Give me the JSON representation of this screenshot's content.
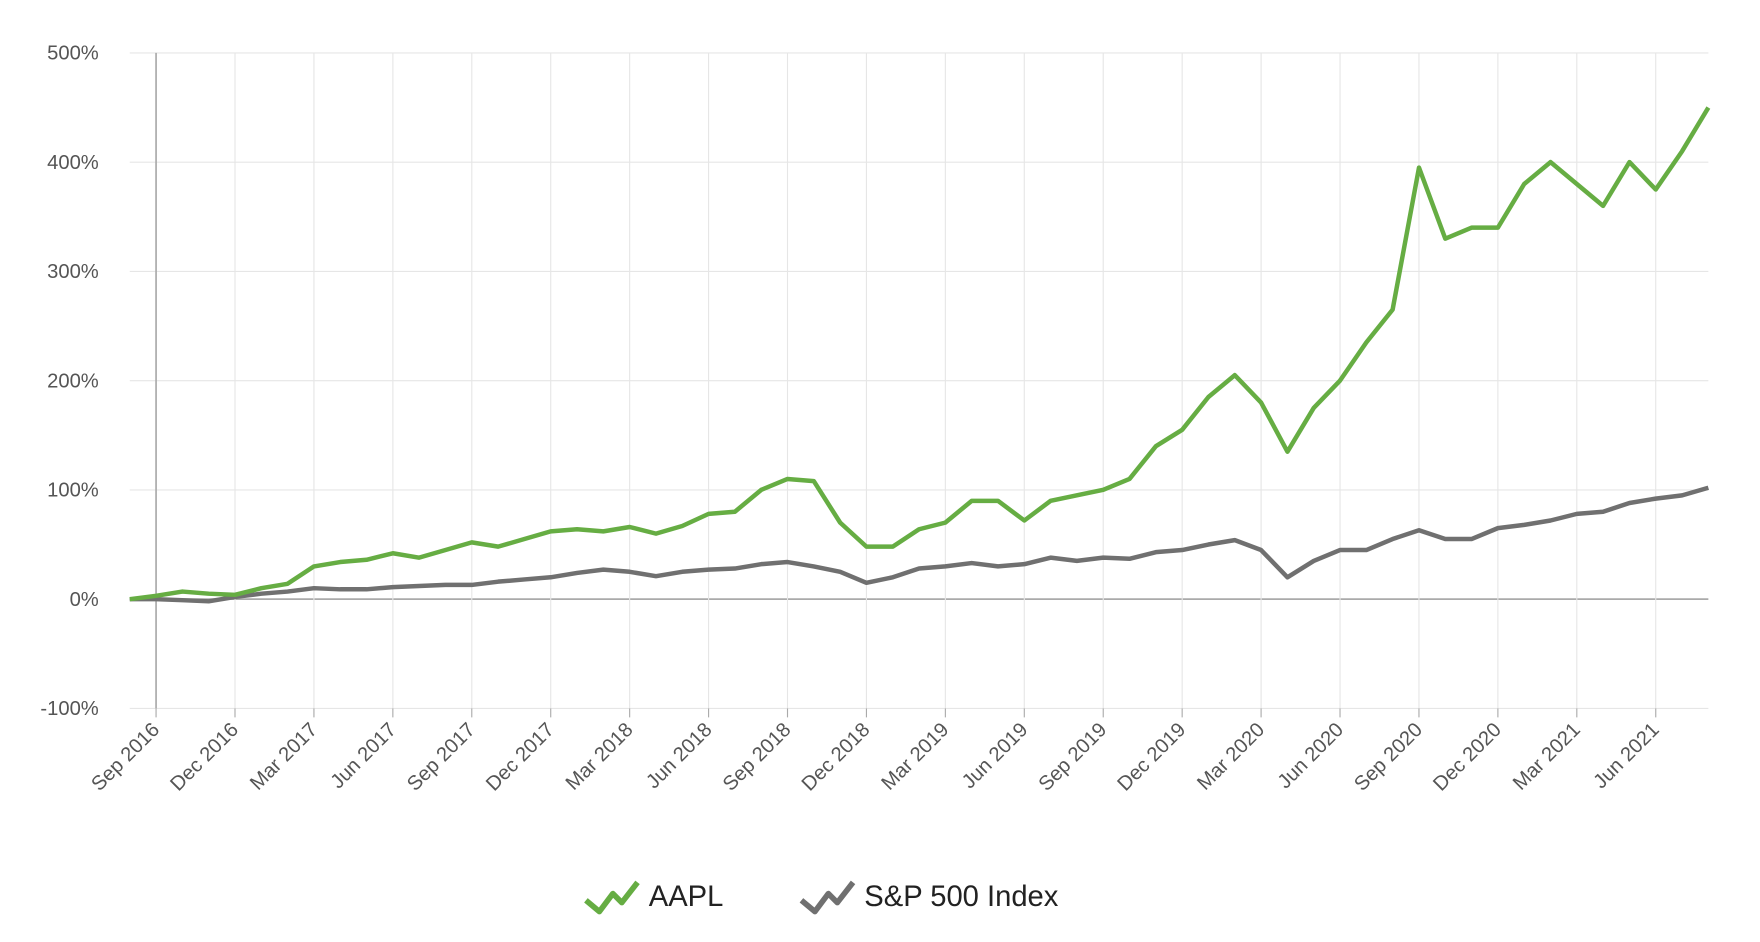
{
  "chart_data": {
    "type": "line",
    "x": [
      "2016-08",
      "2016-09",
      "2016-10",
      "2016-11",
      "2016-12",
      "2017-01",
      "2017-02",
      "2017-03",
      "2017-04",
      "2017-05",
      "2017-06",
      "2017-07",
      "2017-08",
      "2017-09",
      "2017-10",
      "2017-11",
      "2017-12",
      "2018-01",
      "2018-02",
      "2018-03",
      "2018-04",
      "2018-05",
      "2018-06",
      "2018-07",
      "2018-08",
      "2018-09",
      "2018-10",
      "2018-11",
      "2018-12",
      "2019-01",
      "2019-02",
      "2019-03",
      "2019-04",
      "2019-05",
      "2019-06",
      "2019-07",
      "2019-08",
      "2019-09",
      "2019-10",
      "2019-11",
      "2019-12",
      "2020-01",
      "2020-02",
      "2020-03",
      "2020-04",
      "2020-05",
      "2020-06",
      "2020-07",
      "2020-08",
      "2020-09",
      "2020-10",
      "2020-11",
      "2020-12",
      "2021-01",
      "2021-02",
      "2021-03",
      "2021-04",
      "2021-05",
      "2021-06",
      "2021-07",
      "2021-08"
    ],
    "series": [
      {
        "name": "AAPL",
        "color": "#66ad43",
        "values": [
          0,
          3,
          7,
          5,
          4,
          10,
          14,
          30,
          34,
          36,
          42,
          38,
          45,
          52,
          48,
          55,
          62,
          64,
          62,
          66,
          60,
          67,
          78,
          80,
          100,
          110,
          108,
          70,
          48,
          48,
          64,
          70,
          90,
          90,
          72,
          90,
          95,
          100,
          110,
          140,
          155,
          185,
          205,
          180,
          135,
          175,
          200,
          235,
          265,
          395,
          330,
          340,
          340,
          380,
          400,
          380,
          360,
          400,
          375,
          410,
          450
        ]
      },
      {
        "name": "S&P 500 Index",
        "color": "#707070",
        "values": [
          0,
          0,
          -1,
          -2,
          2,
          5,
          7,
          10,
          9,
          9,
          11,
          12,
          13,
          13,
          16,
          18,
          20,
          24,
          27,
          25,
          21,
          25,
          27,
          28,
          32,
          34,
          30,
          25,
          15,
          20,
          28,
          30,
          33,
          30,
          32,
          38,
          35,
          38,
          37,
          43,
          45,
          50,
          54,
          45,
          20,
          35,
          45,
          45,
          55,
          63,
          55,
          55,
          65,
          68,
          72,
          78,
          80,
          88,
          92,
          95,
          102
        ]
      }
    ],
    "xlim": [
      "2016-08",
      "2021-08"
    ],
    "xticks": [
      {
        "value": "2016-09",
        "label": "Sep 2016"
      },
      {
        "value": "2016-12",
        "label": "Dec 2016"
      },
      {
        "value": "2017-03",
        "label": "Mar 2017"
      },
      {
        "value": "2017-06",
        "label": "Jun 2017"
      },
      {
        "value": "2017-09",
        "label": "Sep 2017"
      },
      {
        "value": "2017-12",
        "label": "Dec 2017"
      },
      {
        "value": "2018-03",
        "label": "Mar 2018"
      },
      {
        "value": "2018-06",
        "label": "Jun 2018"
      },
      {
        "value": "2018-09",
        "label": "Sep 2018"
      },
      {
        "value": "2018-12",
        "label": "Dec 2018"
      },
      {
        "value": "2019-03",
        "label": "Mar 2019"
      },
      {
        "value": "2019-06",
        "label": "Jun 2019"
      },
      {
        "value": "2019-09",
        "label": "Sep 2019"
      },
      {
        "value": "2019-12",
        "label": "Dec 2019"
      },
      {
        "value": "2020-03",
        "label": "Mar 2020"
      },
      {
        "value": "2020-06",
        "label": "Jun 2020"
      },
      {
        "value": "2020-09",
        "label": "Sep 2020"
      },
      {
        "value": "2020-12",
        "label": "Dec 2020"
      },
      {
        "value": "2021-03",
        "label": "Mar 2021"
      },
      {
        "value": "2021-06",
        "label": "Jun 2021"
      }
    ],
    "ylim": [
      -100,
      500
    ],
    "yticks": [
      {
        "value": -100,
        "label": "-100%"
      },
      {
        "value": 0,
        "label": "0%"
      },
      {
        "value": 100,
        "label": "100%"
      },
      {
        "value": 200,
        "label": "200%"
      },
      {
        "value": 300,
        "label": "300%"
      },
      {
        "value": 400,
        "label": "400%"
      },
      {
        "value": 500,
        "label": "500%"
      }
    ],
    "grid": true,
    "legend": "bottom"
  }
}
